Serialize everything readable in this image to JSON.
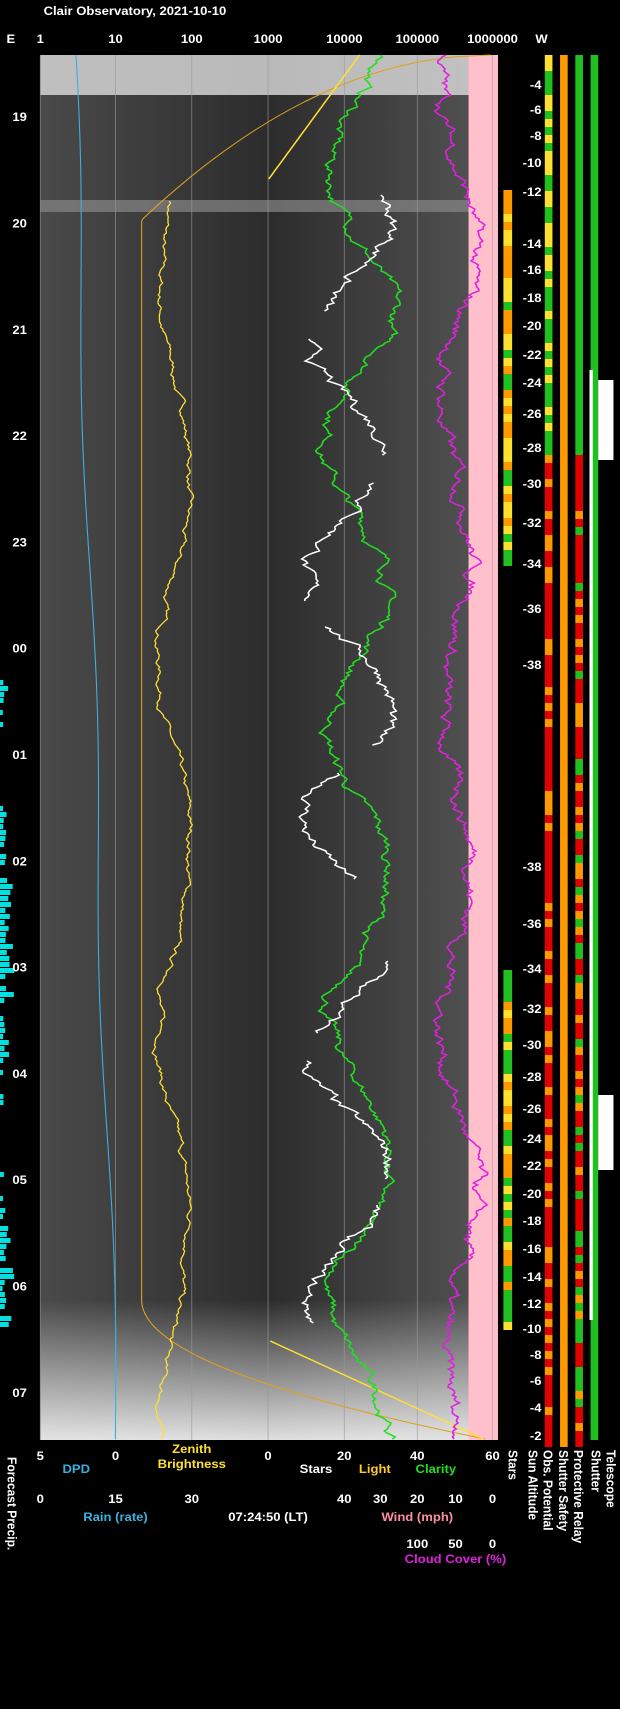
{
  "header": {
    "title": "Clair Observatory, 2021-10-10"
  },
  "top_axis": {
    "left": "E",
    "ticks": [
      "1",
      "10",
      "100",
      "1000",
      "10000",
      "100000",
      "1000000"
    ],
    "right": "W"
  },
  "hours": [
    "19",
    "20",
    "21",
    "22",
    "23",
    "00",
    "01",
    "02",
    "03",
    "04",
    "05",
    "06",
    "07"
  ],
  "sun_altitude": [
    "-4",
    "-6",
    "-8",
    "-10",
    "-12",
    "-14",
    "-16",
    "-18",
    "-20",
    "-22",
    "-24",
    "-26",
    "-28",
    "-30",
    "-32",
    "-34",
    "-36",
    "-38",
    "-38",
    "-36",
    "-34",
    "-32",
    "-30",
    "-28",
    "-26",
    "-24",
    "-22",
    "-20",
    "-18",
    "-16",
    "-14",
    "-12",
    "-10",
    "-8",
    "-6",
    "-4",
    "-2"
  ],
  "bottom": {
    "row1": [
      "5",
      "0",
      "0",
      "20",
      "40",
      "60"
    ],
    "zenith": "Zenith",
    "brightness": "Brightness",
    "dpd": "DPD",
    "stars": "Stars",
    "light": "Light",
    "clarity": "Clarity",
    "rain_ticks": [
      "0",
      "15",
      "30"
    ],
    "rain": "Rain (rate)",
    "time": "07:24:50 (LT)",
    "wind_ticks": [
      "40",
      "30",
      "20",
      "10",
      "0"
    ],
    "wind": "Wind (mph)",
    "cloud_ticks": [
      "100",
      "50",
      "0"
    ],
    "cloud": "Cloud Cover (%)"
  },
  "side_labels": [
    "Stars",
    "Sun Altitude",
    "Obs. Potential",
    "Shutter Safety",
    "Protective Relay",
    "Shutter",
    "Telescope"
  ],
  "left_label": "Forecast Precip."
}
